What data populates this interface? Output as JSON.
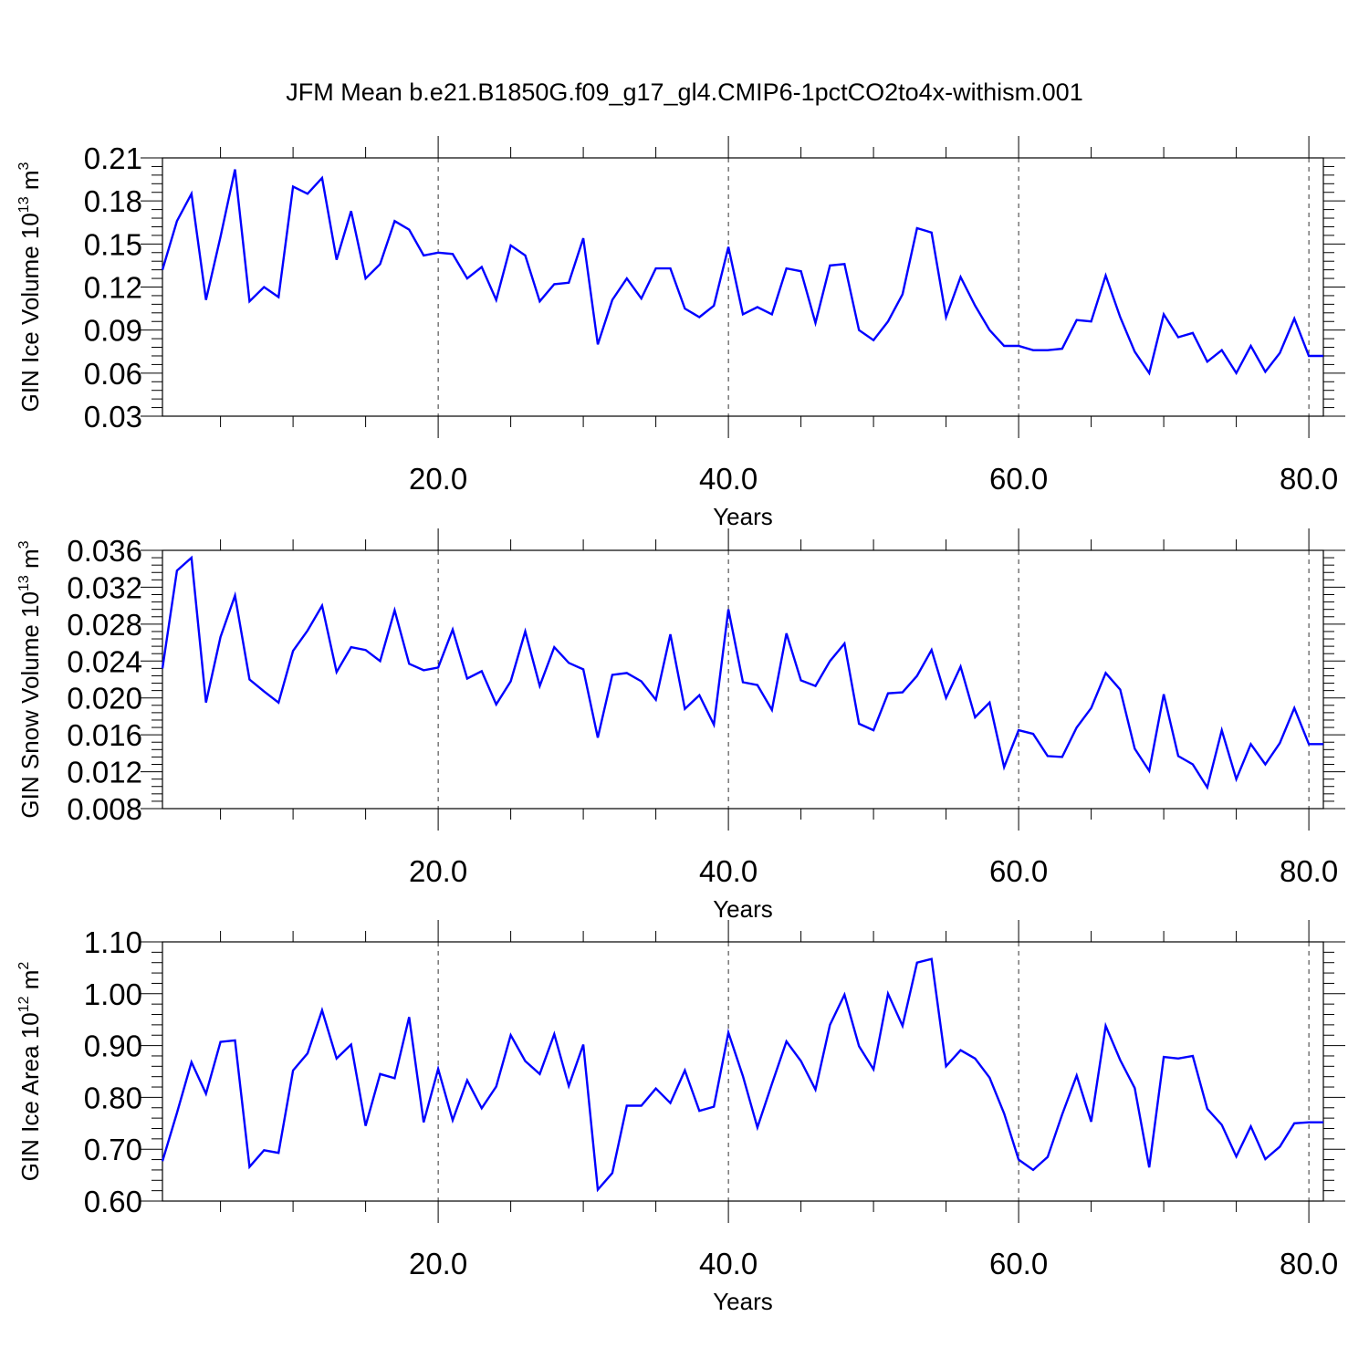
{
  "title": "JFM Mean b.e21.B1850G.f09_g17_gl4.CMIP6-1pctCO2to4x-withism.001",
  "colors": {
    "line": "#0000ff",
    "axis": "#000000",
    "grid": "#000000"
  },
  "chart_data": [
    {
      "type": "line",
      "id": "ice-volume",
      "ylabel_main": "GIN Ice Volume 10",
      "ylabel_exp": "13",
      "ylabel_unit": " m",
      "ylabel_unit_exp": "3",
      "xlabel": "Years",
      "xlim": [
        1,
        81
      ],
      "ylim": [
        0.03,
        0.21
      ],
      "x_ticks": [
        20,
        40,
        60,
        80
      ],
      "x_tick_labels": [
        "20.0",
        "40.0",
        "60.0",
        "80.0"
      ],
      "y_ticks": [
        0.03,
        0.06,
        0.09,
        0.12,
        0.15,
        0.18,
        0.21
      ],
      "y_tick_labels": [
        "0.03",
        "0.06",
        "0.09",
        "0.12",
        "0.15",
        "0.18",
        "0.21"
      ],
      "grid": "vertical dashed at major x ticks",
      "x": [
        1,
        2,
        3,
        4,
        5,
        6,
        7,
        8,
        9,
        10,
        11,
        12,
        13,
        14,
        15,
        16,
        17,
        18,
        19,
        20,
        21,
        22,
        23,
        24,
        25,
        26,
        27,
        28,
        29,
        30,
        31,
        32,
        33,
        34,
        35,
        36,
        37,
        38,
        39,
        40,
        41,
        42,
        43,
        44,
        45,
        46,
        47,
        48,
        49,
        50,
        51,
        52,
        53,
        54,
        55,
        56,
        57,
        58,
        59,
        60,
        61,
        62,
        63,
        64,
        65,
        66,
        67,
        68,
        69,
        70,
        71,
        72,
        73,
        74,
        75,
        76,
        77,
        78,
        79,
        80,
        81
      ],
      "values": [
        0.132,
        0.166,
        0.185,
        0.111,
        0.155,
        0.202,
        0.11,
        0.12,
        0.113,
        0.19,
        0.185,
        0.196,
        0.139,
        0.173,
        0.126,
        0.136,
        0.166,
        0.16,
        0.142,
        0.144,
        0.143,
        0.126,
        0.134,
        0.111,
        0.149,
        0.142,
        0.11,
        0.122,
        0.123,
        0.154,
        0.08,
        0.111,
        0.126,
        0.112,
        0.133,
        0.133,
        0.105,
        0.099,
        0.107,
        0.148,
        0.101,
        0.106,
        0.101,
        0.133,
        0.131,
        0.095,
        0.135,
        0.136,
        0.09,
        0.083,
        0.096,
        0.115,
        0.161,
        0.158,
        0.099,
        0.127,
        0.107,
        0.09,
        0.079,
        0.079,
        0.076,
        0.076,
        0.077,
        0.097,
        0.096,
        0.128,
        0.099,
        0.075,
        0.06,
        0.101,
        0.085,
        0.088,
        0.068,
        0.076,
        0.06,
        0.079,
        0.061,
        0.074,
        0.098,
        0.072,
        0.072
      ]
    },
    {
      "type": "line",
      "id": "snow-volume",
      "ylabel_main": "GIN Snow Volume 10",
      "ylabel_exp": "13",
      "ylabel_unit": " m",
      "ylabel_unit_exp": "3",
      "xlabel": "Years",
      "xlim": [
        1,
        81
      ],
      "ylim": [
        0.008,
        0.036
      ],
      "x_ticks": [
        20,
        40,
        60,
        80
      ],
      "x_tick_labels": [
        "20.0",
        "40.0",
        "60.0",
        "80.0"
      ],
      "y_ticks": [
        0.008,
        0.012,
        0.016,
        0.02,
        0.024,
        0.028,
        0.032,
        0.036
      ],
      "y_tick_labels": [
        "0.008",
        "0.012",
        "0.016",
        "0.020",
        "0.024",
        "0.028",
        "0.032",
        "0.036"
      ],
      "grid": "vertical dashed at major x ticks",
      "x": [
        1,
        2,
        3,
        4,
        5,
        6,
        7,
        8,
        9,
        10,
        11,
        12,
        13,
        14,
        15,
        16,
        17,
        18,
        19,
        20,
        21,
        22,
        23,
        24,
        25,
        26,
        27,
        28,
        29,
        30,
        31,
        32,
        33,
        34,
        35,
        36,
        37,
        38,
        39,
        40,
        41,
        42,
        43,
        44,
        45,
        46,
        47,
        48,
        49,
        50,
        51,
        52,
        53,
        54,
        55,
        56,
        57,
        58,
        59,
        60,
        61,
        62,
        63,
        64,
        65,
        66,
        67,
        68,
        69,
        70,
        71,
        72,
        73,
        74,
        75,
        76,
        77,
        78,
        79,
        80,
        81
      ],
      "values": [
        0.0232,
        0.0338,
        0.0352,
        0.0195,
        0.0266,
        0.0311,
        0.022,
        0.0207,
        0.0195,
        0.0251,
        0.0273,
        0.03,
        0.0228,
        0.0255,
        0.0252,
        0.024,
        0.0295,
        0.0237,
        0.023,
        0.0233,
        0.0274,
        0.0221,
        0.0229,
        0.0193,
        0.0218,
        0.0272,
        0.0213,
        0.0255,
        0.0238,
        0.0231,
        0.0157,
        0.0225,
        0.0227,
        0.0218,
        0.0198,
        0.0269,
        0.0188,
        0.0203,
        0.0171,
        0.0296,
        0.0217,
        0.0214,
        0.0187,
        0.027,
        0.0219,
        0.0213,
        0.024,
        0.0259,
        0.0172,
        0.0165,
        0.0205,
        0.0206,
        0.0224,
        0.0252,
        0.02,
        0.0234,
        0.0179,
        0.0195,
        0.0125,
        0.0165,
        0.0161,
        0.0137,
        0.0136,
        0.0168,
        0.0189,
        0.0227,
        0.0209,
        0.0145,
        0.0121,
        0.0204,
        0.0137,
        0.0128,
        0.0103,
        0.0165,
        0.0112,
        0.015,
        0.0128,
        0.0151,
        0.0189,
        0.015,
        0.015
      ]
    },
    {
      "type": "line",
      "id": "ice-area",
      "ylabel_main": "GIN Ice Area 10",
      "ylabel_exp": "12",
      "ylabel_unit": " m",
      "ylabel_unit_exp": "2",
      "xlabel": "Years",
      "xlim": [
        1,
        81
      ],
      "ylim": [
        0.6,
        1.1
      ],
      "x_ticks": [
        20,
        40,
        60,
        80
      ],
      "x_tick_labels": [
        "20.0",
        "40.0",
        "60.0",
        "80.0"
      ],
      "y_ticks": [
        0.6,
        0.7,
        0.8,
        0.9,
        1.0,
        1.1
      ],
      "y_tick_labels": [
        "0.60",
        "0.70",
        "0.80",
        "0.90",
        "1.00",
        "1.10"
      ],
      "grid": "vertical dashed at major x ticks",
      "x": [
        1,
        2,
        3,
        4,
        5,
        6,
        7,
        8,
        9,
        10,
        11,
        12,
        13,
        14,
        15,
        16,
        17,
        18,
        19,
        20,
        21,
        22,
        23,
        24,
        25,
        26,
        27,
        28,
        29,
        30,
        31,
        32,
        33,
        34,
        35,
        36,
        37,
        38,
        39,
        40,
        41,
        42,
        43,
        44,
        45,
        46,
        47,
        48,
        49,
        50,
        51,
        52,
        53,
        54,
        55,
        56,
        57,
        58,
        59,
        60,
        61,
        62,
        63,
        64,
        65,
        66,
        67,
        68,
        69,
        70,
        71,
        72,
        73,
        74,
        75,
        76,
        77,
        78,
        79,
        80,
        81
      ],
      "values": [
        0.677,
        0.77,
        0.868,
        0.807,
        0.907,
        0.91,
        0.666,
        0.698,
        0.693,
        0.852,
        0.885,
        0.968,
        0.875,
        0.902,
        0.745,
        0.845,
        0.837,
        0.955,
        0.752,
        0.855,
        0.756,
        0.833,
        0.779,
        0.821,
        0.92,
        0.87,
        0.845,
        0.922,
        0.822,
        0.902,
        0.622,
        0.654,
        0.784,
        0.784,
        0.817,
        0.789,
        0.852,
        0.774,
        0.782,
        0.925,
        0.841,
        0.742,
        0.826,
        0.908,
        0.87,
        0.815,
        0.94,
        0.998,
        0.899,
        0.854,
        1.0,
        0.938,
        1.06,
        1.067,
        0.86,
        0.891,
        0.875,
        0.838,
        0.769,
        0.68,
        0.66,
        0.685,
        0.767,
        0.842,
        0.753,
        0.938,
        0.872,
        0.818,
        0.665,
        0.878,
        0.875,
        0.88,
        0.778,
        0.747,
        0.686,
        0.744,
        0.681,
        0.705,
        0.75,
        0.752,
        0.752
      ]
    }
  ]
}
